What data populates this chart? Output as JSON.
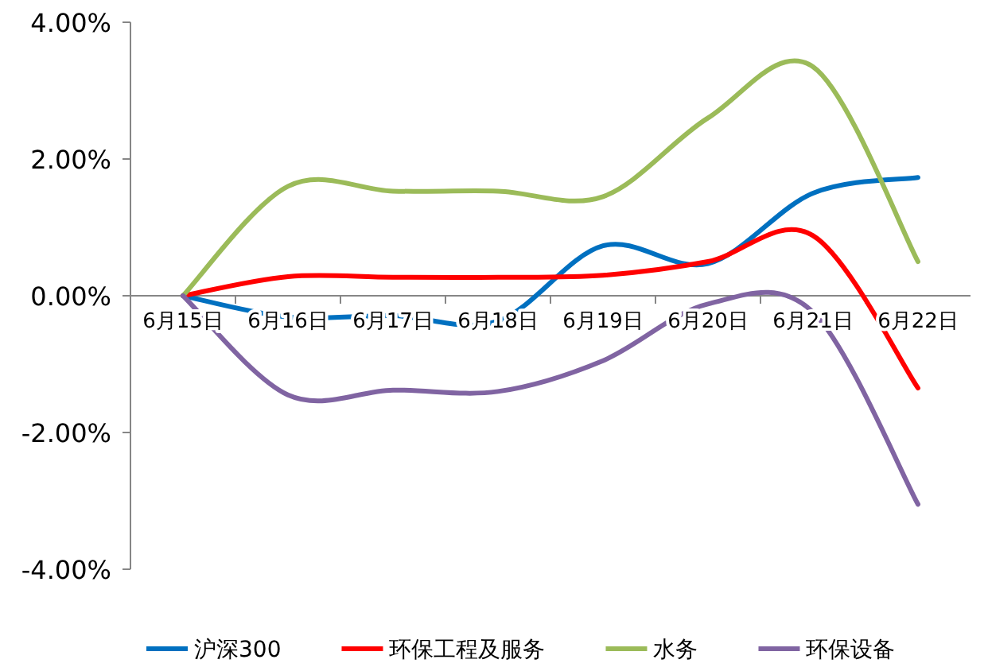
{
  "chart_data": {
    "type": "line",
    "categories": [
      "6月15日",
      "6月16日",
      "6月17日",
      "6月18日",
      "6月19日",
      "6月20日",
      "6月21日",
      "6月22日"
    ],
    "series": [
      {
        "name": "沪深300",
        "color": "#0070c0",
        "values": [
          0,
          -0.31,
          -0.29,
          -0.37,
          0.73,
          0.47,
          1.5,
          1.73
        ]
      },
      {
        "name": "环保工程及服务",
        "color": "#ff0000",
        "values": [
          0,
          0.28,
          0.27,
          0.27,
          0.3,
          0.5,
          0.88,
          -1.35
        ]
      },
      {
        "name": "水务",
        "color": "#9bbb59",
        "values": [
          0,
          1.6,
          1.53,
          1.53,
          1.45,
          2.6,
          3.35,
          0.5
        ]
      },
      {
        "name": "环保设备",
        "color": "#8064a2",
        "values": [
          0,
          -1.45,
          -1.38,
          -1.4,
          -0.95,
          -0.12,
          -0.24,
          -3.05
        ]
      }
    ],
    "ylim": [
      -4,
      4
    ],
    "yticks": [
      {
        "value": 4,
        "label": "4.00%"
      },
      {
        "value": 2,
        "label": "2.00%"
      },
      {
        "value": 0,
        "label": "0.00%"
      },
      {
        "value": -2,
        "label": "-2.00%"
      },
      {
        "value": -4,
        "label": "-4.00%"
      }
    ],
    "grid": false,
    "legend": "bottom",
    "marker": "none",
    "line_style": "solid"
  }
}
